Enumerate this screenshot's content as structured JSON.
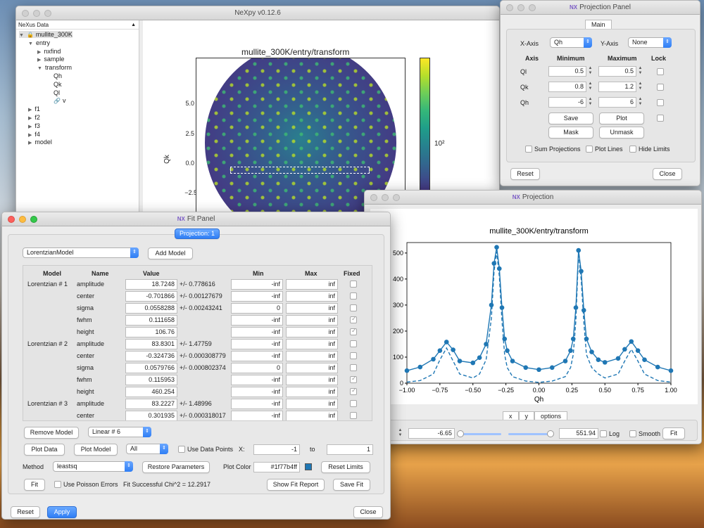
{
  "main_window": {
    "title": "NeXpy v0.12.6",
    "tree_header": "NeXus Data",
    "tree": [
      {
        "label": "mullite_300K",
        "indent": 0,
        "arrow": "▼"
      },
      {
        "label": "entry",
        "indent": 1,
        "arrow": "▼"
      },
      {
        "label": "nxfind",
        "indent": 2,
        "arrow": "▶"
      },
      {
        "label": "sample",
        "indent": 2,
        "arrow": "▶"
      },
      {
        "label": "transform",
        "indent": 2,
        "arrow": "▼"
      },
      {
        "label": "Qh",
        "indent": 3,
        "arrow": ""
      },
      {
        "label": "Qk",
        "indent": 3,
        "arrow": ""
      },
      {
        "label": "Ql",
        "indent": 3,
        "arrow": ""
      },
      {
        "label": "v",
        "indent": 3,
        "arrow": ""
      },
      {
        "label": "f1",
        "indent": 1,
        "arrow": "▶"
      },
      {
        "label": "f2",
        "indent": 1,
        "arrow": "▶"
      },
      {
        "label": "f3",
        "indent": 1,
        "arrow": "▶"
      },
      {
        "label": "f4",
        "indent": 1,
        "arrow": "▶"
      },
      {
        "label": "model",
        "indent": 1,
        "arrow": "▶"
      }
    ],
    "plot": {
      "title": "mullite_300K/entry/transform",
      "ylabel": "Qk",
      "yticks": [
        "5.0",
        "2.5",
        "0.0",
        "−2.5"
      ],
      "colorbar_label": "10²"
    }
  },
  "projection_panel": {
    "title": "Projection Panel",
    "tab": "Main",
    "x_axis_label": "X-Axis",
    "x_axis": "Qh",
    "y_axis_label": "Y-Axis",
    "y_axis": "None",
    "headers": {
      "axis": "Axis",
      "min": "Minimum",
      "max": "Maximum",
      "lock": "Lock"
    },
    "rows": [
      {
        "axis": "Ql",
        "min": "0.5",
        "max": "0.5"
      },
      {
        "axis": "Qk",
        "min": "0.8",
        "max": "1.2"
      },
      {
        "axis": "Qh",
        "min": "-6",
        "max": "6"
      }
    ],
    "save": "Save",
    "plot": "Plot",
    "mask": "Mask",
    "unmask": "Unmask",
    "sum": "Sum Projections",
    "lines": "Plot Lines",
    "hide": "Hide Limits",
    "reset": "Reset",
    "close": "Close"
  },
  "projection_window": {
    "title": "Projection",
    "xlabel": "Qh",
    "tabs": [
      "x",
      "y",
      "options"
    ],
    "controls": {
      "min": "-6.65",
      "max": "551.94",
      "log": "Log",
      "smooth": "Smooth",
      "fit": "Fit"
    },
    "chart_data": {
      "type": "line",
      "title": "mullite_300K/entry/transform",
      "xlabel": "Qh",
      "ylabel": "",
      "xlim": [
        -1.0,
        1.0
      ],
      "ylim": [
        0,
        540
      ],
      "xticks": [
        "−1.00",
        "−0.75",
        "−0.50",
        "−0.25",
        "0.00",
        "0.25",
        "0.50",
        "0.75",
        "1.00"
      ],
      "yticks": [
        "0",
        "100",
        "200",
        "300",
        "400",
        "500"
      ],
      "series": [
        {
          "marker": "o",
          "style": "solid",
          "color": "#1f77b4",
          "x": [
            -1.0,
            -0.9,
            -0.8,
            -0.75,
            -0.7,
            -0.65,
            -0.6,
            -0.5,
            -0.45,
            -0.4,
            -0.36,
            -0.34,
            -0.32,
            -0.3,
            -0.28,
            -0.26,
            -0.24,
            -0.2,
            -0.1,
            0.0,
            0.1,
            0.2,
            0.24,
            0.26,
            0.28,
            0.3,
            0.32,
            0.34,
            0.36,
            0.4,
            0.45,
            0.5,
            0.6,
            0.65,
            0.7,
            0.75,
            0.8,
            0.9,
            1.0
          ],
          "y": [
            48,
            62,
            92,
            125,
            158,
            128,
            85,
            78,
            98,
            150,
            300,
            460,
            522,
            440,
            290,
            170,
            125,
            85,
            60,
            52,
            60,
            85,
            125,
            170,
            290,
            510,
            430,
            280,
            170,
            120,
            90,
            80,
            95,
            130,
            160,
            125,
            90,
            62,
            48
          ]
        },
        {
          "marker": "",
          "style": "dashed",
          "color": "#1f77b4",
          "x": [
            -1.0,
            -0.9,
            -0.8,
            -0.75,
            -0.7,
            -0.65,
            -0.6,
            -0.5,
            -0.45,
            -0.4,
            -0.36,
            -0.34,
            -0.32,
            -0.3,
            -0.28,
            -0.26,
            -0.24,
            -0.2,
            -0.1,
            0.0,
            0.1,
            0.2,
            0.24,
            0.26,
            0.28,
            0.3,
            0.32,
            0.34,
            0.36,
            0.4,
            0.45,
            0.5,
            0.6,
            0.65,
            0.7,
            0.75,
            0.8,
            0.9,
            1.0
          ],
          "y": [
            4,
            10,
            35,
            90,
            135,
            85,
            35,
            20,
            35,
            90,
            250,
            430,
            505,
            410,
            240,
            110,
            60,
            25,
            8,
            3,
            8,
            25,
            60,
            110,
            240,
            500,
            400,
            235,
            110,
            60,
            35,
            20,
            35,
            85,
            130,
            85,
            35,
            10,
            4
          ]
        }
      ]
    }
  },
  "fit_panel": {
    "title": "Fit Panel",
    "projection_button": "Projection: 1",
    "model_select": "LorentzianModel",
    "add_model": "Add Model",
    "columns": {
      "model": "Model",
      "name": "Name",
      "value": "Value",
      "min": "Min",
      "max": "Max",
      "fixed": "Fixed"
    },
    "rows": [
      {
        "model": "Lorentzian # 1",
        "name": "amplitude",
        "value": "18.7248",
        "err": "+/- 0.778616",
        "min": "-inf",
        "max": "inf",
        "fixed": false
      },
      {
        "model": "",
        "name": "center",
        "value": "-0.701866",
        "err": "+/- 0.00127679",
        "min": "-inf",
        "max": "inf",
        "fixed": false
      },
      {
        "model": "",
        "name": "sigma",
        "value": "0.0558288",
        "err": "+/- 0.00243241",
        "min": "0",
        "max": "inf",
        "fixed": false
      },
      {
        "model": "",
        "name": "fwhm",
        "value": "0.111658",
        "err": "",
        "min": "-inf",
        "max": "inf",
        "fixed": true
      },
      {
        "model": "",
        "name": "height",
        "value": "106.76",
        "err": "",
        "min": "-inf",
        "max": "inf",
        "fixed": true
      },
      {
        "model": "Lorentzian # 2",
        "name": "amplitude",
        "value": "83.8301",
        "err": "+/- 1.47759",
        "min": "-inf",
        "max": "inf",
        "fixed": false
      },
      {
        "model": "",
        "name": "center",
        "value": "-0.324736",
        "err": "+/- 0.000308779",
        "min": "-inf",
        "max": "inf",
        "fixed": false
      },
      {
        "model": "",
        "name": "sigma",
        "value": "0.0579766",
        "err": "+/- 0.000802374",
        "min": "0",
        "max": "inf",
        "fixed": false
      },
      {
        "model": "",
        "name": "fwhm",
        "value": "0.115953",
        "err": "",
        "min": "-inf",
        "max": "inf",
        "fixed": true
      },
      {
        "model": "",
        "name": "height",
        "value": "460.254",
        "err": "",
        "min": "-inf",
        "max": "inf",
        "fixed": true
      },
      {
        "model": "Lorentzian # 3",
        "name": "amplitude",
        "value": "83.2227",
        "err": "+/- 1.48996",
        "min": "-inf",
        "max": "inf",
        "fixed": false
      },
      {
        "model": "",
        "name": "center",
        "value": "0.301935",
        "err": "+/- 0.000318017",
        "min": "-inf",
        "max": "inf",
        "fixed": false
      }
    ],
    "remove_model": "Remove Model",
    "model_choice": "Linear # 6",
    "plot_data": "Plot Data",
    "plot_model": "Plot Model",
    "plot_choice": "All",
    "use_data_points": "Use Data Points",
    "x_label": "X:",
    "x_from": "-1",
    "to_label": "to",
    "x_to": "1",
    "method_label": "Method",
    "method": "leastsq",
    "restore": "Restore Parameters",
    "plot_color_label": "Plot Color",
    "plot_color": "#1f77b4ff",
    "color_swatch": "#1f77b4",
    "reset_limits": "Reset Limits",
    "fit": "Fit",
    "poisson": "Use Poisson Errors",
    "status": "Fit Successful Chi^2 = 12.2917",
    "show_report": "Show Fit Report",
    "save_fit": "Save Fit",
    "reset": "Reset",
    "apply": "Apply",
    "close": "Close"
  }
}
